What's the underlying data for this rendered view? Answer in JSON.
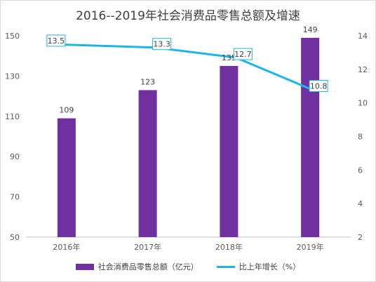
{
  "colors": {
    "bar": "#7030a0",
    "line": "#1fb4e6",
    "label_border": "#1fb4e6"
  },
  "chart_data": {
    "type": "bar",
    "title": "2016--2019年社会消费品零售总额及增速",
    "categories": [
      "2016年",
      "2017年",
      "2018年",
      "2019年"
    ],
    "series": [
      {
        "name": "社会消费品零售总额（亿元）",
        "type": "bar",
        "axis": "left",
        "values": [
          109,
          123,
          135,
          149
        ]
      },
      {
        "name": "比上年增长（%）",
        "type": "line",
        "axis": "right",
        "values": [
          13.5,
          13.3,
          12.7,
          10.8
        ]
      }
    ],
    "ylim": [
      50,
      150
    ],
    "yticks": [
      50,
      70,
      90,
      110,
      130,
      150
    ],
    "y2lim": [
      2,
      14
    ],
    "y2ticks": [
      2,
      4,
      6,
      8,
      10,
      12,
      14
    ],
    "grid": false,
    "legend": "bottom"
  }
}
